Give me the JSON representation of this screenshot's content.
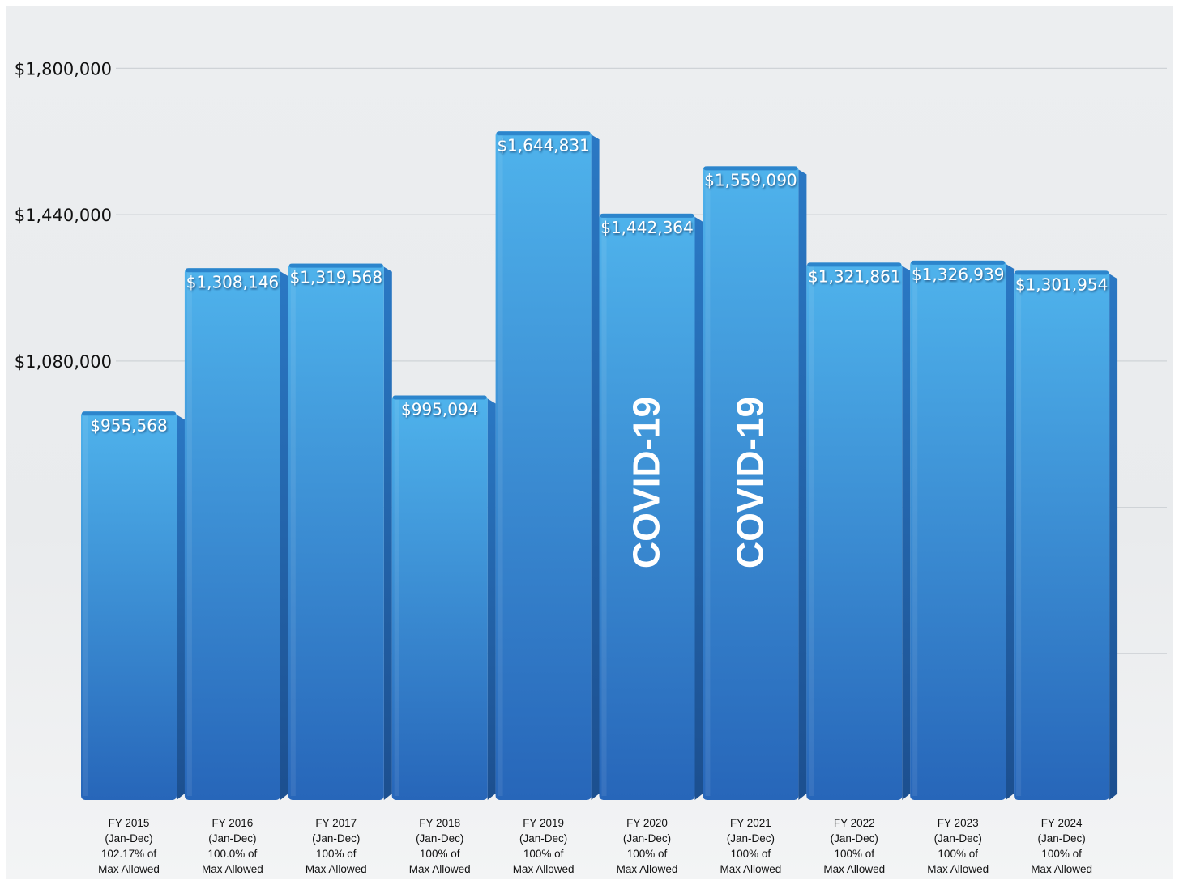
{
  "colors": {
    "bar_top": "#4fb3ec",
    "bar_bottom": "#2766b9",
    "bar_side": "#1c4f8f",
    "bar_cap": "#2c85cc",
    "value_label": "#ffffff",
    "background": "#ebedef",
    "gridline": "#cfd3d7",
    "axis_text": "#111111"
  },
  "chart_data": {
    "type": "bar",
    "title": "",
    "xlabel": "",
    "ylabel": "",
    "ylim": [
      0,
      1800000
    ],
    "ytick_values": [
      1080000,
      1440000,
      1800000
    ],
    "ytick_labels": [
      "$1,080,000",
      "$1,440,000",
      "$1,800,000"
    ],
    "grid": true,
    "categories": [
      [
        "FY 2015",
        "(Jan-Dec)",
        "102.17% of",
        "Max Allowed"
      ],
      [
        "FY 2016",
        "(Jan-Dec)",
        "100.0% of",
        "Max Allowed"
      ],
      [
        "FY 2017",
        "(Jan-Dec)",
        "100% of",
        "Max Allowed"
      ],
      [
        "FY 2018",
        "(Jan-Dec)",
        "100% of",
        "Max Allowed"
      ],
      [
        "FY 2019",
        "(Jan-Dec)",
        "100% of",
        "Max Allowed"
      ],
      [
        "FY 2020",
        "(Jan-Dec)",
        "100% of",
        "Max Allowed"
      ],
      [
        "FY 2021",
        "(Jan-Dec)",
        "100% of",
        "Max Allowed"
      ],
      [
        "FY 2022",
        "(Jan-Dec)",
        "100% of",
        "Max Allowed"
      ],
      [
        "FY 2023",
        "(Jan-Dec)",
        "100% of",
        "Max Allowed"
      ],
      [
        "FY 2024",
        "(Jan-Dec)",
        "100% of",
        "Max Allowed"
      ]
    ],
    "values": [
      955568,
      1308146,
      1319568,
      995094,
      1644831,
      1442364,
      1559090,
      1321861,
      1326939,
      1301954
    ],
    "data_labels": [
      "$955,568",
      "$1,308,146",
      "$1,319,568",
      "$995,094",
      "$1,644,831",
      "$1,442,364",
      "$1,559,090",
      "$1,321,861",
      "$1,326,939",
      "$1,301,954"
    ],
    "annotations": [
      "",
      "",
      "",
      "",
      "",
      "COVID-19",
      "COVID-19",
      "",
      "",
      ""
    ]
  }
}
